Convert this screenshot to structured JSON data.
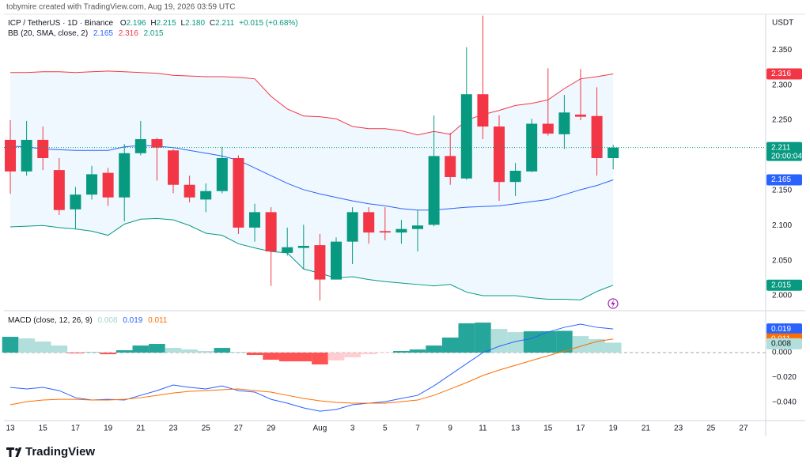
{
  "header": {
    "attribution": "tobymire created with TradingView.com, Aug 19, 2026 03:59 UTC"
  },
  "chart_data": {
    "type": "candlestick",
    "symbol": "ICP / TetherUS · 1D · Binance",
    "ohlc_legend": [
      [
        "O",
        "2.196"
      ],
      [
        "H",
        "2.215"
      ],
      [
        "L",
        "2.180"
      ],
      [
        "C",
        "2.211"
      ]
    ],
    "change": "+0.015 (+0.68%)",
    "currency": "USDT",
    "countdown": "20:00:04",
    "up_color": "#089981",
    "down_color": "#f23645",
    "xlim": [
      -0.39,
      46.36
    ],
    "xticks": [
      {
        "value": 0,
        "label": "13"
      },
      {
        "value": 2,
        "label": "15"
      },
      {
        "value": 4,
        "label": "17"
      },
      {
        "value": 6,
        "label": "19"
      },
      {
        "value": 8,
        "label": "21"
      },
      {
        "value": 10,
        "label": "23"
      },
      {
        "value": 12,
        "label": "25"
      },
      {
        "value": 14,
        "label": "27"
      },
      {
        "value": 16,
        "label": "29"
      },
      {
        "value": 19,
        "label": "Aug"
      },
      {
        "value": 21,
        "label": "3"
      },
      {
        "value": 23,
        "label": "5"
      },
      {
        "value": 25,
        "label": "7"
      },
      {
        "value": 27,
        "label": "9"
      },
      {
        "value": 29,
        "label": "11"
      },
      {
        "value": 31,
        "label": "13"
      },
      {
        "value": 33,
        "label": "15"
      },
      {
        "value": 35,
        "label": "17"
      },
      {
        "value": 37,
        "label": "19"
      },
      {
        "value": 39,
        "label": "21"
      },
      {
        "value": 41,
        "label": "23"
      },
      {
        "value": 43,
        "label": "25"
      },
      {
        "value": 45,
        "label": "27"
      }
    ],
    "ylim": [
      1.982,
      2.401
    ],
    "yticks": [
      {
        "value": 2.0,
        "label": "2.000"
      },
      {
        "value": 2.05,
        "label": "2.050"
      },
      {
        "value": 2.1,
        "label": "2.100"
      },
      {
        "value": 2.15,
        "label": "2.150"
      },
      {
        "value": 2.2,
        "label": "2.200"
      },
      {
        "value": 2.25,
        "label": "2.250"
      },
      {
        "value": 2.3,
        "label": "2.300"
      },
      {
        "value": 2.35,
        "label": "2.350"
      }
    ],
    "open": [
      2.222,
      2.177,
      2.222,
      2.179,
      2.123,
      2.144,
      2.175,
      2.14,
      2.203,
      2.223,
      2.207,
      2.158,
      2.137,
      2.149,
      2.196,
      2.097,
      2.119,
      2.061,
      2.068,
      2.072,
      2.023,
      2.077,
      2.119,
      2.092,
      2.09,
      2.095,
      2.101,
      2.199,
      2.167,
      2.287,
      2.241,
      2.162,
      2.177,
      2.245,
      2.23,
      2.258,
      2.256,
      2.196
    ],
    "high": [
      2.25,
      2.249,
      2.241,
      2.196,
      2.155,
      2.185,
      2.182,
      2.216,
      2.249,
      2.225,
      2.209,
      2.171,
      2.16,
      2.212,
      2.2,
      2.131,
      2.126,
      2.097,
      2.101,
      2.088,
      2.083,
      2.126,
      2.126,
      2.126,
      2.108,
      2.122,
      2.257,
      2.232,
      2.354,
      2.399,
      2.257,
      2.189,
      2.252,
      2.324,
      2.286,
      2.323,
      2.297,
      2.215
    ],
    "low": [
      2.145,
      2.171,
      2.179,
      2.115,
      2.095,
      2.137,
      2.128,
      2.106,
      2.2,
      2.164,
      2.146,
      2.133,
      2.119,
      2.146,
      2.088,
      2.077,
      2.014,
      2.057,
      2.038,
      1.993,
      2.023,
      2.045,
      2.074,
      2.079,
      2.074,
      2.063,
      2.099,
      2.158,
      2.165,
      2.223,
      2.135,
      2.142,
      2.176,
      2.228,
      2.209,
      2.25,
      2.171,
      2.18
    ],
    "close": [
      2.177,
      2.222,
      2.196,
      2.122,
      2.144,
      2.173,
      2.14,
      2.203,
      2.223,
      2.211,
      2.158,
      2.14,
      2.149,
      2.196,
      2.097,
      2.119,
      2.063,
      2.069,
      2.071,
      2.023,
      2.077,
      2.119,
      2.09,
      2.09,
      2.095,
      2.1,
      2.199,
      2.169,
      2.287,
      2.241,
      2.162,
      2.178,
      2.245,
      2.231,
      2.261,
      2.255,
      2.196,
      2.211
    ],
    "bollinger": {
      "label": "BB (20, SMA, close, 2)",
      "fill": "rgba(33,150,243,0.07)",
      "middle": {
        "color": "#2962ff",
        "value_label": "2.165",
        "values": [
          2.213,
          2.212,
          2.209,
          2.208,
          2.207,
          2.207,
          2.207,
          2.212,
          2.214,
          2.213,
          2.211,
          2.207,
          2.203,
          2.199,
          2.193,
          2.182,
          2.171,
          2.16,
          2.151,
          2.145,
          2.14,
          2.135,
          2.131,
          2.128,
          2.124,
          2.122,
          2.122,
          2.124,
          2.126,
          2.127,
          2.128,
          2.131,
          2.134,
          2.137,
          2.144,
          2.151,
          2.157,
          2.165
        ]
      },
      "upper": {
        "color": "#f23645",
        "value_label": "2.316",
        "values": [
          2.318,
          2.318,
          2.319,
          2.319,
          2.318,
          2.319,
          2.32,
          2.319,
          2.318,
          2.317,
          2.314,
          2.313,
          2.312,
          2.312,
          2.311,
          2.309,
          2.284,
          2.266,
          2.256,
          2.255,
          2.252,
          2.241,
          2.238,
          2.238,
          2.235,
          2.229,
          2.234,
          2.23,
          2.25,
          2.258,
          2.264,
          2.271,
          2.274,
          2.279,
          2.295,
          2.309,
          2.312,
          2.316
        ]
      },
      "lower": {
        "color": "#089981",
        "value_label": "2.015",
        "values": [
          2.098,
          2.099,
          2.1,
          2.097,
          2.095,
          2.092,
          2.086,
          2.102,
          2.109,
          2.11,
          2.108,
          2.1,
          2.089,
          2.086,
          2.074,
          2.068,
          2.063,
          2.061,
          2.038,
          2.032,
          2.025,
          2.027,
          2.023,
          2.02,
          2.018,
          2.016,
          2.014,
          2.016,
          2.005,
          2.0,
          2.0,
          2.0,
          1.997,
          1.995,
          1.995,
          1.994,
          2.006,
          2.015
        ]
      }
    },
    "macd": {
      "label": "MACD (close, 12, 26, 9)",
      "ylim": [
        -0.0533,
        0.0305
      ],
      "yticks": [
        {
          "value": 0,
          "label": "0.000"
        },
        {
          "value": -0.02,
          "label": "−0.020"
        },
        {
          "value": -0.04,
          "label": "−0.040"
        }
      ],
      "histogram": {
        "colors": [
          "#26a69a",
          "#b2dfdb",
          "#ff5252",
          "#ffcdd2"
        ],
        "value_label": "0.008",
        "values": [
          0.0127,
          0.0114,
          0.0089,
          0.0057,
          -0.0006,
          0.0003,
          -0.0013,
          0.0019,
          0.0057,
          0.007,
          0.0038,
          0.0025,
          0.0013,
          0.0038,
          0.0006,
          -0.0019,
          -0.0057,
          -0.007,
          -0.007,
          -0.0095,
          -0.0063,
          -0.0038,
          -0.0013,
          -0.0003,
          0.0013,
          0.0025,
          0.0057,
          0.0121,
          0.0235,
          0.0241,
          0.019,
          0.0165,
          0.0171,
          0.0172,
          0.0175,
          0.0133,
          0.0108,
          0.008
        ]
      },
      "macd": {
        "color": "#2962ff",
        "value_label": "0.019",
        "values": [
          -0.0279,
          -0.0292,
          -0.0279,
          -0.0305,
          -0.0362,
          -0.0381,
          -0.0375,
          -0.0381,
          -0.0343,
          -0.0305,
          -0.026,
          -0.0279,
          -0.0292,
          -0.0267,
          -0.0305,
          -0.0317,
          -0.0375,
          -0.0406,
          -0.0444,
          -0.047,
          -0.0457,
          -0.0419,
          -0.0406,
          -0.0394,
          -0.0368,
          -0.0343,
          -0.0267,
          -0.0178,
          -0.0089,
          0.0,
          0.0051,
          0.0089,
          0.0114,
          0.0165,
          0.0203,
          0.0229,
          0.0203,
          0.019
        ]
      },
      "signal": {
        "color": "#ff6d00",
        "value_label": "0.011",
        "values": [
          -0.0419,
          -0.0394,
          -0.0381,
          -0.0375,
          -0.0375,
          -0.0381,
          -0.0381,
          -0.0375,
          -0.0362,
          -0.0343,
          -0.0324,
          -0.0311,
          -0.0305,
          -0.0298,
          -0.0292,
          -0.0305,
          -0.0317,
          -0.0343,
          -0.0368,
          -0.0387,
          -0.04,
          -0.0406,
          -0.0406,
          -0.0406,
          -0.0394,
          -0.0381,
          -0.0343,
          -0.0292,
          -0.0241,
          -0.0184,
          -0.014,
          -0.0102,
          -0.0063,
          -0.0025,
          0.0013,
          0.0051,
          0.0089,
          0.011
        ]
      }
    }
  },
  "footer": {
    "brand": "TradingView"
  }
}
